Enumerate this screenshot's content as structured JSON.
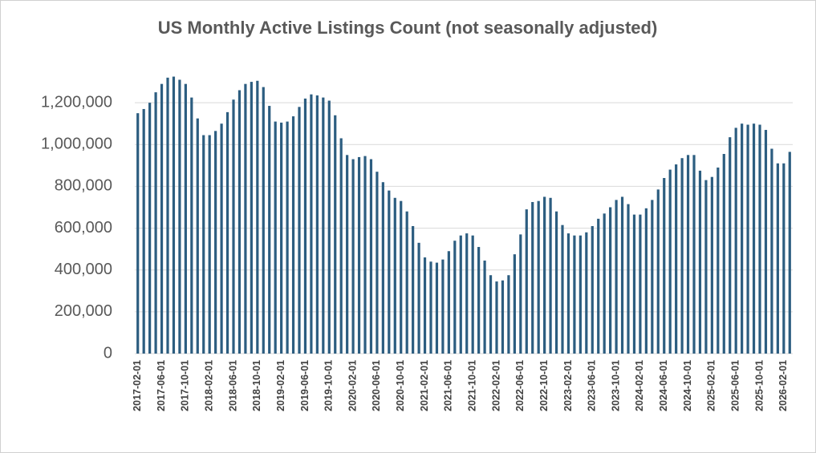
{
  "chart_data": {
    "type": "bar",
    "title": "US Monthly Active Listings Count (not seasonally adjusted)",
    "color": "#2c5d80",
    "grid": true,
    "ylim": [
      0,
      1400000
    ],
    "yticks": [
      0,
      {
        "value": 200000,
        "label": "200,000"
      },
      {
        "value": 400000,
        "label": "400,000"
      },
      {
        "value": 600000,
        "label": "600,000"
      },
      {
        "value": 800000,
        "label": "800,000"
      },
      {
        "value": 1000000,
        "label": "1,000,000"
      },
      {
        "value": 1200000,
        "label": "1,200,000"
      }
    ],
    "categories": [
      "2017-02-01",
      null,
      null,
      null,
      "2017-06-01",
      null,
      null,
      null,
      "2017-10-01",
      null,
      null,
      null,
      "2018-02-01",
      null,
      null,
      null,
      "2018-06-01",
      null,
      null,
      null,
      "2018-10-01",
      null,
      null,
      null,
      "2019-02-01",
      null,
      null,
      null,
      "2019-06-01",
      null,
      null,
      null,
      "2019-10-01",
      null,
      null,
      null,
      "2020-02-01",
      null,
      null,
      null,
      "2020-06-01",
      null,
      null,
      null,
      "2020-10-01",
      null,
      null,
      null,
      "2021-02-01",
      null,
      null,
      null,
      "2021-06-01",
      null,
      null,
      null,
      "2021-10-01",
      null,
      null,
      null,
      "2022-02-01",
      null,
      null,
      null,
      "2022-06-01",
      null,
      null,
      null,
      "2022-10-01",
      null,
      null,
      null,
      "2023-02-01",
      null,
      null,
      null,
      "2023-06-01",
      null,
      null,
      null,
      "2023-10-01",
      null,
      null,
      null,
      "2024-02-01",
      null,
      null,
      null,
      "2024-06-01",
      null,
      null,
      null,
      "2024-10-01",
      null,
      null,
      null,
      "2025-02-01",
      null,
      null,
      null,
      "2025-06-01",
      null,
      null,
      null,
      "2025-10-01",
      null,
      null,
      null,
      "2026-02-01",
      null
    ],
    "values": [
      1150000,
      1170000,
      1200000,
      1250000,
      1290000,
      1320000,
      1325000,
      1310000,
      1290000,
      1225000,
      1125000,
      1045000,
      1045000,
      1065000,
      1100000,
      1155000,
      1215000,
      1260000,
      1290000,
      1300000,
      1305000,
      1275000,
      1185000,
      1110000,
      1105000,
      1110000,
      1135000,
      1180000,
      1220000,
      1240000,
      1235000,
      1225000,
      1210000,
      1140000,
      1030000,
      950000,
      930000,
      940000,
      945000,
      930000,
      870000,
      820000,
      780000,
      745000,
      730000,
      680000,
      610000,
      530000,
      460000,
      440000,
      435000,
      450000,
      490000,
      540000,
      565000,
      575000,
      565000,
      510000,
      445000,
      375000,
      345000,
      350000,
      375000,
      475000,
      570000,
      690000,
      725000,
      730000,
      750000,
      745000,
      680000,
      615000,
      575000,
      565000,
      565000,
      580000,
      610000,
      645000,
      670000,
      700000,
      735000,
      750000,
      715000,
      665000,
      665000,
      695000,
      735000,
      785000,
      840000,
      880000,
      905000,
      935000,
      950000,
      950000,
      875000,
      830000,
      845000,
      890000,
      955000,
      1035000,
      1080000,
      1100000,
      1095000,
      1100000,
      1095000,
      1070000,
      980000,
      910000,
      910000,
      965000
    ]
  }
}
